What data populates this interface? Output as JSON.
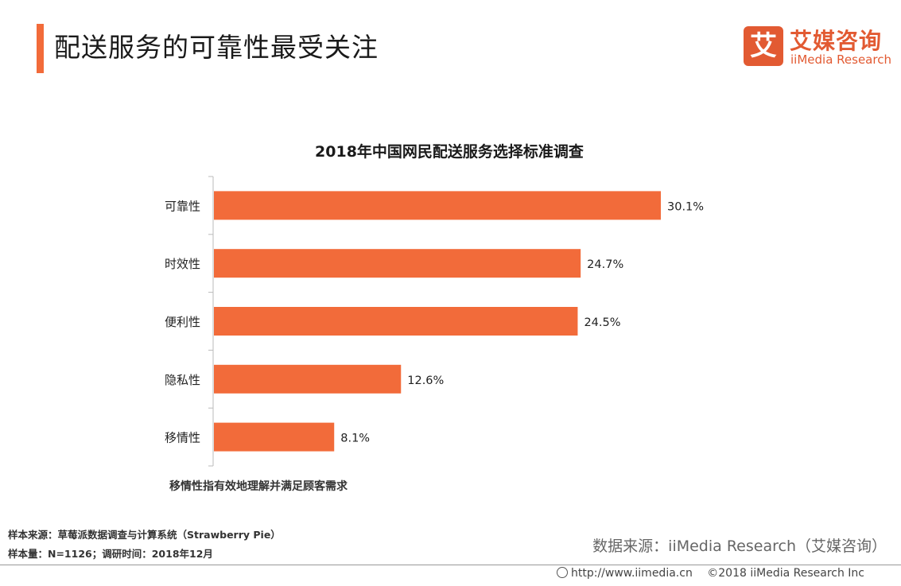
{
  "header": {
    "title": "配送服务的可靠性最受关注",
    "logo_icon_text": "艾",
    "logo_cn": "艾媒咨询",
    "logo_en": "iiMedia Research"
  },
  "chart_data": {
    "type": "bar",
    "orientation": "horizontal",
    "title": "2018年中国网民配送服务选择标准调查",
    "categories": [
      "可靠性",
      "时效性",
      "便利性",
      "隐私性",
      "移情性"
    ],
    "values": [
      30.1,
      24.7,
      24.5,
      12.6,
      8.1
    ],
    "value_labels": [
      "30.1%",
      "24.7%",
      "24.5%",
      "12.6%",
      "8.1%"
    ],
    "unit": "%",
    "xlim": [
      0,
      30.1
    ],
    "bar_color": "#f26b3a",
    "grid": false,
    "legend": "none"
  },
  "note": "移情性指有效地理解并满足顾客需求",
  "footer": {
    "sample_source": "样本来源：草莓派数据调查与计算系统（Strawberry Pie）",
    "sample_info": "样本量：N=1126；调研时间：2018年12月",
    "data_source": "数据来源：iiMedia Research（艾媒咨询）",
    "url": "http://www.iimedia.cn",
    "copyright": "©2018  iiMedia Research  Inc"
  }
}
